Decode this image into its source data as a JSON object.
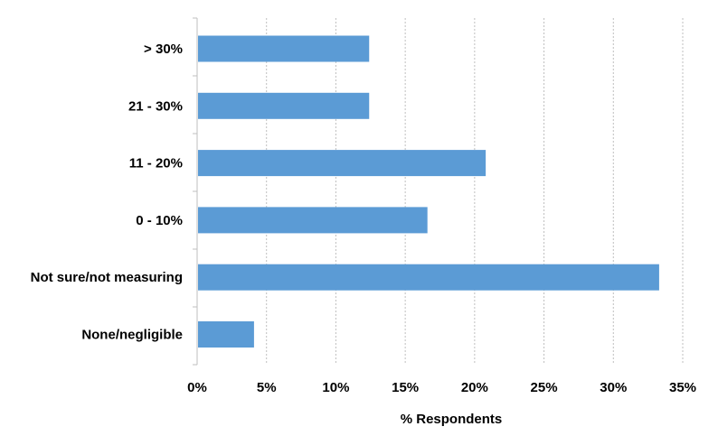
{
  "chart_data": {
    "type": "bar",
    "orientation": "horizontal",
    "categories": [
      "> 30%",
      "21 - 30%",
      "11 - 20%",
      "0 - 10%",
      "Not sure/not measuring",
      "None/negligible"
    ],
    "values": [
      12.4,
      12.4,
      20.8,
      16.6,
      33.3,
      4.1
    ],
    "xlabel": "% Respondents",
    "ylabel": "",
    "xlim": [
      0,
      35
    ],
    "xticks": [
      0,
      5,
      10,
      15,
      20,
      25,
      30,
      35
    ],
    "xtick_labels": [
      "0%",
      "5%",
      "10%",
      "15%",
      "20%",
      "25%",
      "30%",
      "35%"
    ],
    "grid": "vertical-dashed",
    "legend": "none",
    "bar_color": "#5b9bd5"
  }
}
